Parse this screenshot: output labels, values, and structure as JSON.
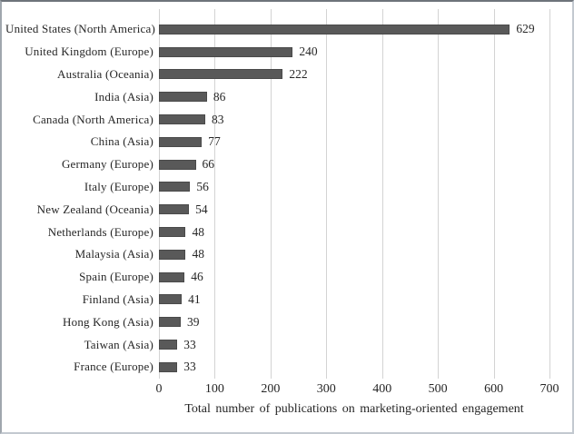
{
  "chart_data": {
    "type": "bar",
    "orientation": "horizontal",
    "title": "",
    "xlabel": "Total number of publications on marketing-oriented engagement",
    "ylabel": "",
    "categories": [
      "United States (North America)",
      "United Kingdom (Europe)",
      "Australia (Oceania)",
      "India (Asia)",
      "Canada (North America)",
      "China (Asia)",
      "Germany (Europe)",
      "Italy (Europe)",
      "New Zealand (Oceania)",
      "Netherlands (Europe)",
      "Malaysia (Asia)",
      "Spain (Europe)",
      "Finland (Asia)",
      "Hong Kong (Asia)",
      "Taiwan (Asia)",
      "France (Europe)"
    ],
    "values": [
      629,
      240,
      222,
      86,
      83,
      77,
      66,
      56,
      54,
      48,
      48,
      46,
      41,
      39,
      33,
      33
    ],
    "xlim": [
      0,
      700
    ],
    "x_ticks": [
      0,
      100,
      200,
      300,
      400,
      500,
      600,
      700
    ],
    "grid": "vertical-gridlines",
    "legend_position": "none",
    "bar_color": "#595959",
    "gridline_color": "#d3d3d3",
    "data_labels": "shown-right-of-bars"
  }
}
